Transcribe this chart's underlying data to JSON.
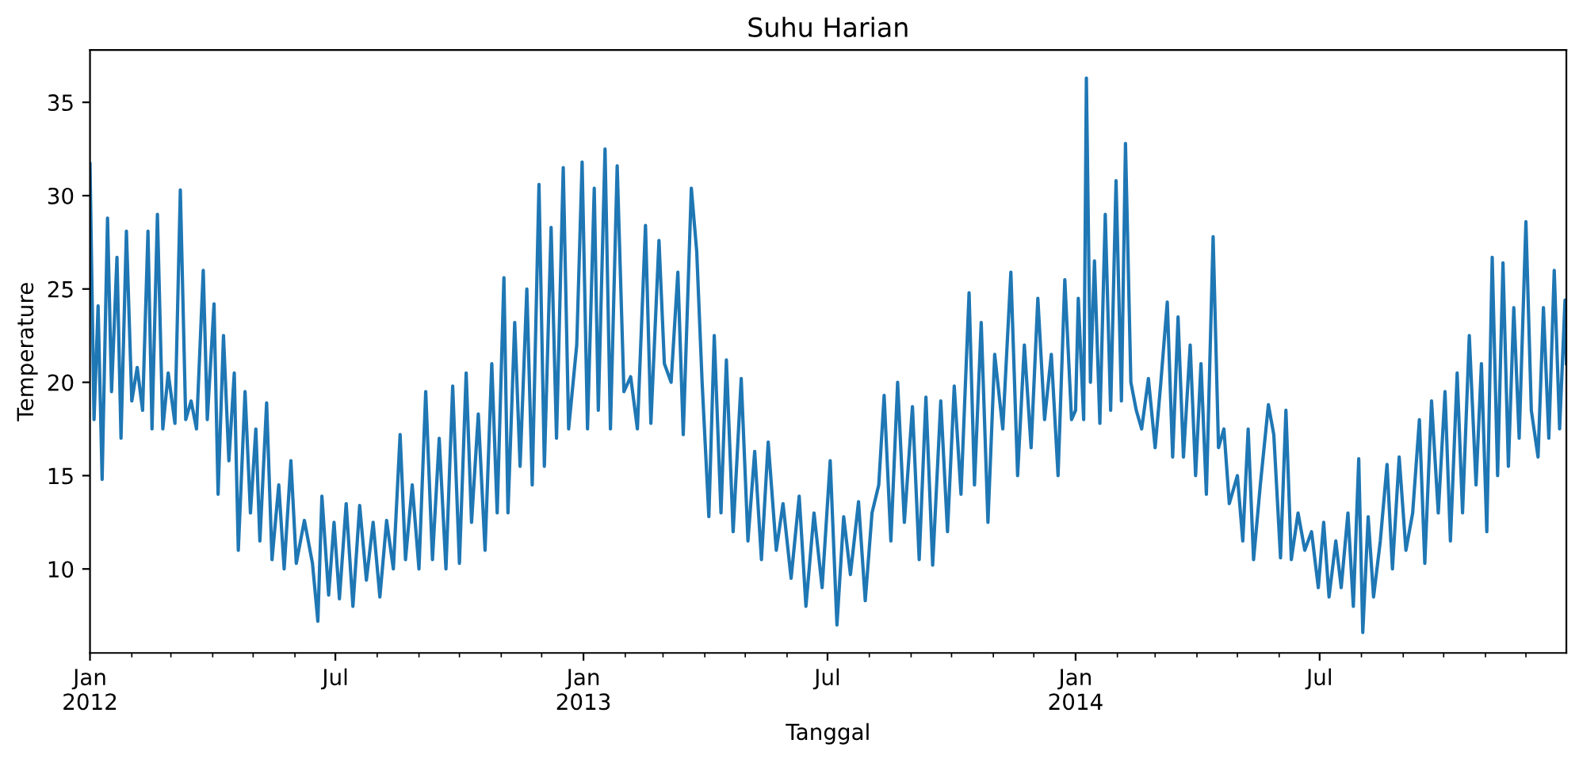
{
  "chart_data": {
    "type": "line",
    "title": "Suhu Harian",
    "xlabel": "Tanggal",
    "ylabel": "Temperature",
    "xlim": [
      "2012-01-01",
      "2014-12-31"
    ],
    "ylim": [
      5.5,
      37.8
    ],
    "yticks": [
      10,
      15,
      20,
      25,
      30,
      35
    ],
    "xticks": [
      {
        "value": "2012-01-01",
        "label": "Jan\n2012"
      },
      {
        "value": "2012-07-01",
        "label": "Jul"
      },
      {
        "value": "2013-01-01",
        "label": "Jan\n2013"
      },
      {
        "value": "2013-07-01",
        "label": "Jul"
      },
      {
        "value": "2014-01-01",
        "label": "Jan\n2014"
      },
      {
        "value": "2014-07-01",
        "label": "Jul"
      }
    ],
    "grid": false,
    "legend": false,
    "marker": "none",
    "line_style": "solid",
    "series": [
      {
        "color": "#1f77b4",
        "x": [
          "2012-01-01",
          "2012-01-04",
          "2012-01-07",
          "2012-01-10",
          "2012-01-14",
          "2012-01-17",
          "2012-01-21",
          "2012-01-24",
          "2012-01-28",
          "2012-02-01",
          "2012-02-05",
          "2012-02-09",
          "2012-02-13",
          "2012-02-16",
          "2012-02-20",
          "2012-02-24",
          "2012-02-28",
          "2012-03-04",
          "2012-03-08",
          "2012-03-12",
          "2012-03-16",
          "2012-03-20",
          "2012-03-25",
          "2012-03-28",
          "2012-04-02",
          "2012-04-05",
          "2012-04-09",
          "2012-04-13",
          "2012-04-17",
          "2012-04-20",
          "2012-04-25",
          "2012-04-29",
          "2012-05-03",
          "2012-05-06",
          "2012-05-11",
          "2012-05-15",
          "2012-05-20",
          "2012-05-24",
          "2012-05-29",
          "2012-06-02",
          "2012-06-08",
          "2012-06-14",
          "2012-06-18",
          "2012-06-21",
          "2012-06-26",
          "2012-06-30",
          "2012-07-04",
          "2012-07-09",
          "2012-07-14",
          "2012-07-19",
          "2012-07-24",
          "2012-07-29",
          "2012-08-03",
          "2012-08-08",
          "2012-08-13",
          "2012-08-18",
          "2012-08-22",
          "2012-08-27",
          "2012-09-01",
          "2012-09-06",
          "2012-09-11",
          "2012-09-16",
          "2012-09-21",
          "2012-09-26",
          "2012-10-01",
          "2012-10-06",
          "2012-10-10",
          "2012-10-15",
          "2012-10-20",
          "2012-10-25",
          "2012-10-29",
          "2012-11-03",
          "2012-11-06",
          "2012-11-11",
          "2012-11-15",
          "2012-11-20",
          "2012-11-24",
          "2012-11-29",
          "2012-12-03",
          "2012-12-08",
          "2012-12-12",
          "2012-12-17",
          "2012-12-21",
          "2012-12-27",
          "2012-12-31",
          "2013-01-04",
          "2013-01-09",
          "2013-01-12",
          "2013-01-17",
          "2013-01-21",
          "2013-01-26",
          "2013-01-31",
          "2013-02-05",
          "2013-02-10",
          "2013-02-16",
          "2013-02-20",
          "2013-02-26",
          "2013-03-02",
          "2013-03-07",
          "2013-03-12",
          "2013-03-16",
          "2013-03-22",
          "2013-03-26",
          "2013-03-30",
          "2013-04-04",
          "2013-04-08",
          "2013-04-13",
          "2013-04-17",
          "2013-04-22",
          "2013-04-28",
          "2013-05-03",
          "2013-05-08",
          "2013-05-13",
          "2013-05-18",
          "2013-05-24",
          "2013-05-29",
          "2013-06-04",
          "2013-06-10",
          "2013-06-15",
          "2013-06-21",
          "2013-06-27",
          "2013-07-03",
          "2013-07-08",
          "2013-07-13",
          "2013-07-18",
          "2013-07-24",
          "2013-07-29",
          "2013-08-03",
          "2013-08-08",
          "2013-08-12",
          "2013-08-17",
          "2013-08-22",
          "2013-08-27",
          "2013-09-02",
          "2013-09-07",
          "2013-09-12",
          "2013-09-17",
          "2013-09-23",
          "2013-09-28",
          "2013-10-03",
          "2013-10-08",
          "2013-10-14",
          "2013-10-18",
          "2013-10-23",
          "2013-10-28",
          "2013-11-02",
          "2013-11-08",
          "2013-11-14",
          "2013-11-19",
          "2013-11-24",
          "2013-11-29",
          "2013-12-04",
          "2013-12-09",
          "2013-12-14",
          "2013-12-19",
          "2013-12-24",
          "2013-12-29",
          "2014-01-01",
          "2014-01-03",
          "2014-01-07",
          "2014-01-09",
          "2014-01-12",
          "2014-01-15",
          "2014-01-19",
          "2014-01-23",
          "2014-01-27",
          "2014-01-31",
          "2014-02-04",
          "2014-02-07",
          "2014-02-11",
          "2014-02-15",
          "2014-02-19",
          "2014-02-24",
          "2014-03-01",
          "2014-03-05",
          "2014-03-10",
          "2014-03-14",
          "2014-03-18",
          "2014-03-22",
          "2014-03-27",
          "2014-03-31",
          "2014-04-04",
          "2014-04-08",
          "2014-04-13",
          "2014-04-17",
          "2014-04-21",
          "2014-04-25",
          "2014-05-01",
          "2014-05-05",
          "2014-05-09",
          "2014-05-13",
          "2014-05-18",
          "2014-05-24",
          "2014-05-28",
          "2014-06-02",
          "2014-06-06",
          "2014-06-10",
          "2014-06-15",
          "2014-06-20",
          "2014-06-25",
          "2014-06-30",
          "2014-07-04",
          "2014-07-08",
          "2014-07-13",
          "2014-07-17",
          "2014-07-22",
          "2014-07-26",
          "2014-07-30",
          "2014-08-02",
          "2014-08-06",
          "2014-08-10",
          "2014-08-15",
          "2014-08-20",
          "2014-08-24",
          "2014-08-29",
          "2014-09-03",
          "2014-09-08",
          "2014-09-13",
          "2014-09-17",
          "2014-09-22",
          "2014-09-27",
          "2014-10-02",
          "2014-10-06",
          "2014-10-11",
          "2014-10-15",
          "2014-10-20",
          "2014-10-25",
          "2014-10-29",
          "2014-11-02",
          "2014-11-06",
          "2014-11-10",
          "2014-11-14",
          "2014-11-18",
          "2014-11-22",
          "2014-11-26",
          "2014-12-01",
          "2014-12-05",
          "2014-12-10",
          "2014-12-14",
          "2014-12-18",
          "2014-12-22",
          "2014-12-26",
          "2014-12-30",
          "2014-12-31"
        ],
        "values": [
          31.7,
          18.0,
          24.1,
          14.8,
          28.8,
          19.5,
          26.7,
          17.0,
          28.1,
          19.0,
          20.8,
          18.5,
          28.1,
          17.5,
          29.0,
          17.5,
          20.5,
          17.8,
          30.3,
          18.0,
          19.0,
          17.5,
          26.0,
          18.0,
          24.2,
          14.0,
          22.5,
          15.8,
          20.5,
          11.0,
          19.5,
          13.0,
          17.5,
          11.5,
          18.9,
          10.5,
          14.5,
          10.0,
          15.8,
          10.3,
          12.6,
          10.3,
          7.2,
          13.9,
          8.6,
          12.5,
          8.4,
          13.5,
          8.0,
          13.4,
          9.4,
          12.5,
          8.5,
          12.6,
          10.0,
          17.2,
          10.5,
          14.5,
          10.0,
          19.5,
          10.5,
          17.0,
          10.0,
          19.8,
          10.3,
          20.5,
          12.5,
          18.3,
          11.0,
          21.0,
          13.0,
          25.6,
          13.0,
          23.2,
          15.5,
          25.0,
          14.5,
          30.6,
          15.5,
          28.3,
          17.0,
          31.5,
          17.5,
          22.0,
          31.8,
          17.5,
          30.4,
          18.5,
          32.5,
          17.5,
          31.6,
          19.5,
          20.3,
          17.5,
          28.4,
          17.8,
          27.6,
          21.0,
          20.0,
          25.9,
          17.2,
          30.4,
          27.0,
          20.0,
          12.8,
          22.5,
          13.0,
          21.2,
          12.0,
          20.2,
          11.5,
          16.3,
          10.5,
          16.8,
          11.0,
          13.5,
          9.5,
          13.9,
          8.0,
          13.0,
          9.0,
          15.8,
          7.0,
          12.8,
          9.7,
          13.6,
          8.3,
          13.0,
          14.5,
          19.3,
          11.5,
          20.0,
          12.5,
          18.7,
          10.5,
          19.2,
          10.2,
          19.0,
          12.0,
          19.8,
          14.0,
          24.8,
          14.5,
          23.2,
          12.5,
          21.5,
          17.5,
          25.9,
          15.0,
          22.0,
          16.5,
          24.5,
          18.0,
          21.5,
          15.0,
          25.5,
          18.0,
          18.5,
          24.5,
          18.0,
          36.3,
          20.0,
          26.5,
          17.8,
          29.0,
          18.5,
          30.8,
          19.0,
          32.8,
          20.0,
          18.5,
          17.5,
          20.2,
          16.5,
          19.8,
          24.3,
          16.0,
          23.5,
          16.0,
          22.0,
          15.0,
          21.0,
          14.0,
          27.8,
          16.5,
          17.5,
          13.5,
          15.0,
          11.5,
          17.5,
          10.5,
          14.5,
          18.8,
          17.2,
          10.6,
          18.5,
          10.5,
          13.0,
          11.0,
          12.0,
          9.0,
          12.5,
          8.5,
          11.5,
          9.0,
          13.0,
          8.0,
          15.9,
          6.6,
          12.8,
          8.5,
          11.5,
          15.6,
          10.0,
          16.0,
          11.0,
          13.0,
          18.0,
          10.3,
          19.0,
          13.0,
          19.5,
          11.5,
          20.5,
          13.0,
          22.5,
          14.5,
          21.0,
          12.0,
          26.7,
          15.0,
          26.4,
          15.5,
          24.0,
          17.0,
          28.6,
          18.5,
          16.0,
          24.0,
          17.0,
          26.0,
          17.5,
          24.4,
          21.0
        ]
      }
    ]
  }
}
